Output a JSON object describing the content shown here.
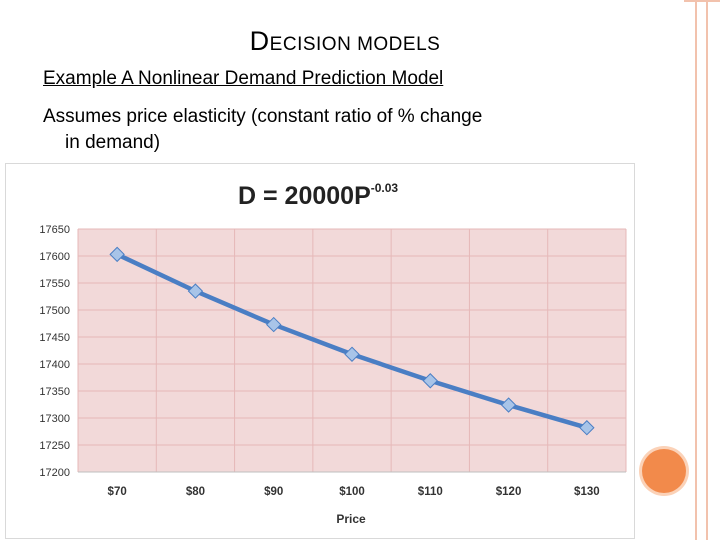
{
  "slide": {
    "title_first": "D",
    "title_rest": "ECISION MODELS",
    "subtitle": "Example  A Nonlinear Demand Prediction Model",
    "body_line1": "Assumes price elasticity (constant ratio of % change",
    "body_line2": "in demand)"
  },
  "chart_data": {
    "type": "line",
    "title_main": "D = 20000P",
    "title_exp": "-0.03",
    "xlabel": "Price",
    "ylabel": "",
    "categories": [
      "$70",
      "$80",
      "$90",
      "$100",
      "$110",
      "$120",
      "$130"
    ],
    "values": [
      17603,
      17535,
      17473,
      17418,
      17369,
      17324,
      17282
    ],
    "ylim": [
      17200,
      17650
    ],
    "yticks": [
      17650,
      17600,
      17550,
      17500,
      17450,
      17400,
      17350,
      17300,
      17250,
      17200
    ],
    "grid": true,
    "colors": {
      "plot_bg": "#f2d9d9",
      "line": "#4a7ec4",
      "marker": "#a8c4e8",
      "grid": "#e6b8b8"
    }
  }
}
